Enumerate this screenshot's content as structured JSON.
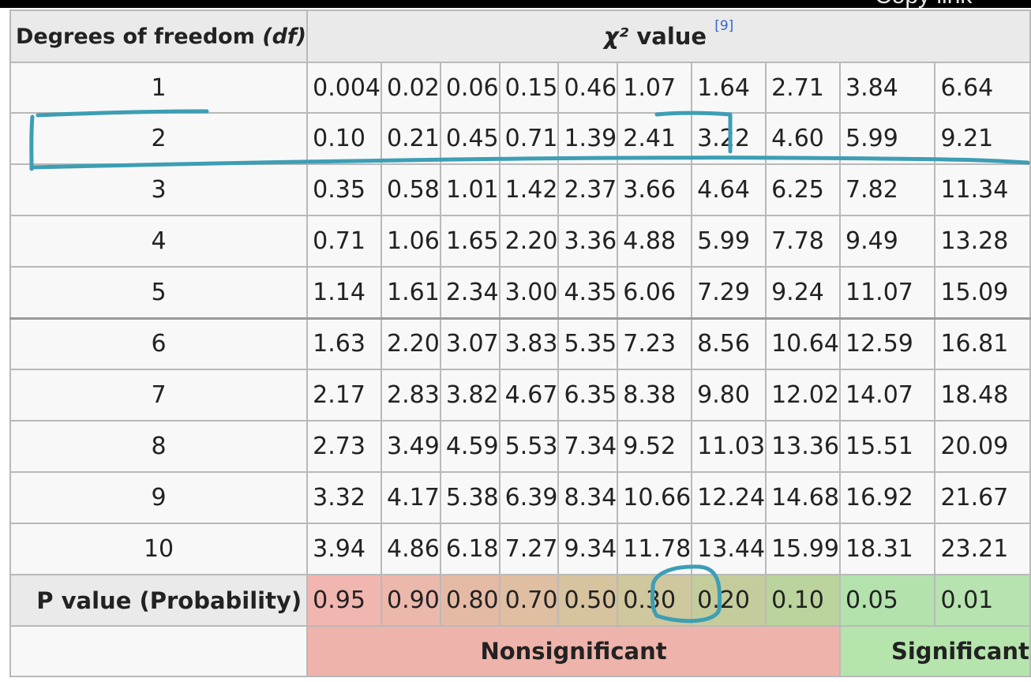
{
  "overlay": {
    "text": "Copy link"
  },
  "table": {
    "header": {
      "df_label_prefix": "Degrees of freedom",
      "df_label_italic": "(df)",
      "chi_symbol": "χ²",
      "chi_label": "value",
      "chi_ref": "[9]"
    },
    "rows": [
      {
        "df": "1",
        "values": [
          "0.004",
          "0.02",
          "0.06",
          "0.15",
          "0.46",
          "1.07",
          "1.64",
          "2.71",
          "3.84",
          "6.64"
        ]
      },
      {
        "df": "2",
        "values": [
          "0.10",
          "0.21",
          "0.45",
          "0.71",
          "1.39",
          "2.41",
          "3.22",
          "4.60",
          "5.99",
          "9.21"
        ]
      },
      {
        "df": "3",
        "values": [
          "0.35",
          "0.58",
          "1.01",
          "1.42",
          "2.37",
          "3.66",
          "4.64",
          "6.25",
          "7.82",
          "11.34"
        ]
      },
      {
        "df": "4",
        "values": [
          "0.71",
          "1.06",
          "1.65",
          "2.20",
          "3.36",
          "4.88",
          "5.99",
          "7.78",
          "9.49",
          "13.28"
        ]
      },
      {
        "df": "5",
        "values": [
          "1.14",
          "1.61",
          "2.34",
          "3.00",
          "4.35",
          "6.06",
          "7.29",
          "9.24",
          "11.07",
          "15.09"
        ]
      },
      {
        "df": "6",
        "values": [
          "1.63",
          "2.20",
          "3.07",
          "3.83",
          "5.35",
          "7.23",
          "8.56",
          "10.64",
          "12.59",
          "16.81"
        ]
      },
      {
        "df": "7",
        "values": [
          "2.17",
          "2.83",
          "3.82",
          "4.67",
          "6.35",
          "8.38",
          "9.80",
          "12.02",
          "14.07",
          "18.48"
        ]
      },
      {
        "df": "8",
        "values": [
          "2.73",
          "3.49",
          "4.59",
          "5.53",
          "7.34",
          "9.52",
          "11.03",
          "13.36",
          "15.51",
          "20.09"
        ]
      },
      {
        "df": "9",
        "values": [
          "3.32",
          "4.17",
          "5.38",
          "6.39",
          "8.34",
          "10.66",
          "12.24",
          "14.68",
          "16.92",
          "21.67"
        ]
      },
      {
        "df": "10",
        "values": [
          "3.94",
          "4.86",
          "6.18",
          "7.27",
          "9.34",
          "11.78",
          "13.44",
          "15.99",
          "18.31",
          "23.21"
        ]
      }
    ],
    "p_row": {
      "label": "P value (Probability)",
      "values": [
        "0.95",
        "0.90",
        "0.80",
        "0.70",
        "0.50",
        "0.30",
        "0.20",
        "0.10",
        "0.05",
        "0.01"
      ],
      "colors": [
        "#f2b6b0",
        "#ecb8ab",
        "#e5baa5",
        "#dfbea2",
        "#d8c39f",
        "#cfc79d",
        "#c4cc9c",
        "#bbd39c",
        "#b3e2ad",
        "#b7e3b0"
      ]
    },
    "verdicts": {
      "nonsig": "Nonsignificant",
      "sig": "Significant",
      "nonsig_color": "#eeb3aa",
      "sig_color": "#b5e5ad"
    }
  },
  "annotations": {
    "color": "#3d9eb4"
  }
}
